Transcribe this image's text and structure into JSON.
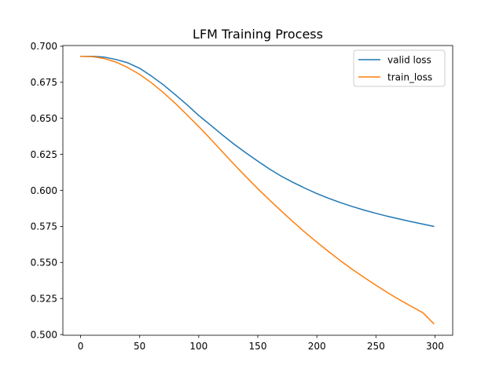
{
  "chart_data": {
    "type": "line",
    "title": "LFM Training Process",
    "xlabel": "",
    "ylabel": "",
    "xlim": [
      -15,
      315
    ],
    "ylim": [
      0.4995,
      0.7005
    ],
    "xticks": [
      0,
      50,
      100,
      150,
      200,
      250,
      300
    ],
    "xtick_labels": [
      "0",
      "50",
      "100",
      "150",
      "200",
      "250",
      "300"
    ],
    "yticks": [
      0.5,
      0.525,
      0.55,
      0.575,
      0.6,
      0.625,
      0.65,
      0.675,
      0.7
    ],
    "ytick_labels": [
      "0.500",
      "0.525",
      "0.550",
      "0.575",
      "0.600",
      "0.625",
      "0.650",
      "0.675",
      "0.700"
    ],
    "grid": false,
    "legend_position": "top-right",
    "series": [
      {
        "name": "valid loss",
        "color": "#1f77b4",
        "x": [
          0,
          10,
          20,
          30,
          40,
          50,
          60,
          70,
          80,
          90,
          100,
          110,
          120,
          130,
          140,
          150,
          160,
          170,
          180,
          190,
          200,
          210,
          220,
          230,
          240,
          250,
          260,
          270,
          280,
          290,
          299
        ],
        "y": [
          0.693,
          0.693,
          0.6925,
          0.6908,
          0.6885,
          0.6847,
          0.6793,
          0.6733,
          0.6665,
          0.6595,
          0.652,
          0.6453,
          0.6385,
          0.632,
          0.626,
          0.6203,
          0.6148,
          0.6098,
          0.6055,
          0.6015,
          0.5978,
          0.5945,
          0.5915,
          0.5888,
          0.5863,
          0.5841,
          0.582,
          0.5801,
          0.5783,
          0.5766,
          0.575
        ]
      },
      {
        "name": "train_loss",
        "color": "#ff7f0e",
        "x": [
          0,
          10,
          20,
          30,
          40,
          50,
          60,
          70,
          80,
          90,
          100,
          110,
          120,
          130,
          140,
          150,
          160,
          170,
          180,
          190,
          200,
          210,
          220,
          230,
          240,
          250,
          260,
          270,
          280,
          290,
          299
        ],
        "y": [
          0.693,
          0.6928,
          0.6915,
          0.689,
          0.6852,
          0.6805,
          0.6746,
          0.6679,
          0.6605,
          0.6525,
          0.6443,
          0.6357,
          0.6268,
          0.618,
          0.6095,
          0.6012,
          0.5933,
          0.5856,
          0.5781,
          0.5709,
          0.5641,
          0.5575,
          0.5512,
          0.5452,
          0.5396,
          0.5342,
          0.529,
          0.5241,
          0.5195,
          0.515,
          0.5075
        ]
      }
    ]
  }
}
